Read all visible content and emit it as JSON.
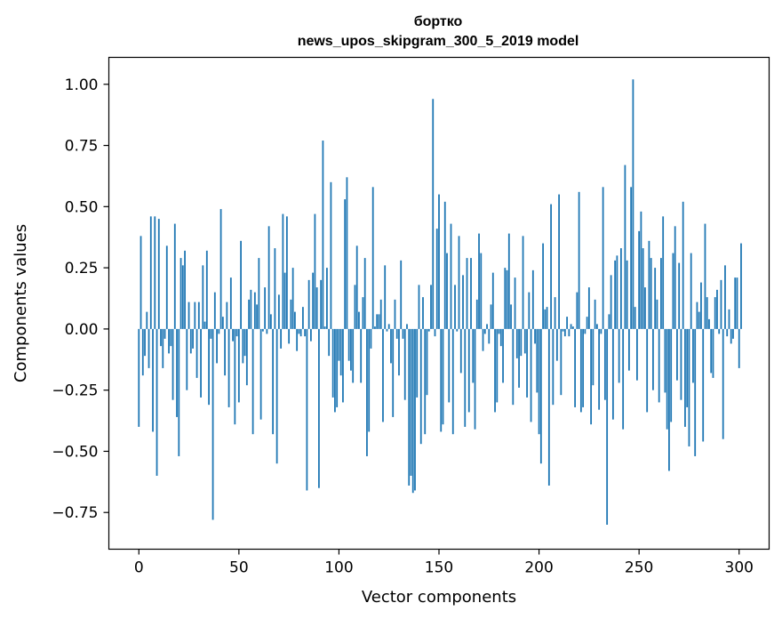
{
  "chart_data": {
    "type": "bar",
    "title": "бортко",
    "subtitle": "news_upos_skipgram_300_5_2019 model",
    "xlabel": "Vector components",
    "ylabel": "Components values",
    "xlim": [
      -15,
      315
    ],
    "ylim": [
      -0.9,
      1.11
    ],
    "xticks": [
      0,
      50,
      100,
      150,
      200,
      250,
      300
    ],
    "xtick_labels": [
      "0",
      "50",
      "100",
      "150",
      "200",
      "250",
      "300"
    ],
    "yticks": [
      -0.75,
      -0.5,
      -0.25,
      0.0,
      0.25,
      0.5,
      0.75,
      1.0
    ],
    "ytick_labels": [
      "−0.75",
      "−0.50",
      "−0.25",
      "0.00",
      "0.25",
      "0.50",
      "0.75",
      "1.00"
    ],
    "bar_color": "#1f77b4",
    "grid": false,
    "values": [
      -0.4,
      0.38,
      -0.19,
      -0.11,
      0.07,
      -0.16,
      0.46,
      -0.42,
      0.46,
      -0.6,
      0.45,
      -0.07,
      -0.16,
      -0.04,
      0.34,
      -0.1,
      -0.07,
      -0.29,
      0.43,
      -0.36,
      -0.52,
      0.29,
      0.26,
      0.32,
      -0.25,
      0.11,
      -0.1,
      -0.08,
      0.11,
      -0.2,
      0.11,
      -0.28,
      0.26,
      0.03,
      0.32,
      -0.31,
      -0.04,
      -0.78,
      0.15,
      -0.14,
      -0.02,
      0.49,
      0.05,
      -0.19,
      0.11,
      -0.32,
      0.21,
      -0.05,
      -0.39,
      -0.03,
      -0.3,
      0.36,
      -0.14,
      -0.11,
      -0.23,
      0.12,
      0.16,
      -0.43,
      0.15,
      0.1,
      0.29,
      -0.37,
      -0.01,
      0.17,
      -0.02,
      0.42,
      0.06,
      -0.43,
      0.33,
      -0.55,
      0.14,
      -0.08,
      0.47,
      0.23,
      0.46,
      -0.06,
      0.12,
      0.25,
      0.07,
      -0.09,
      -0.02,
      -0.03,
      0.09,
      -0.03,
      -0.66,
      0.2,
      -0.05,
      0.23,
      0.47,
      0.17,
      -0.65,
      0.2,
      0.77,
      0.01,
      0.25,
      -0.11,
      0.6,
      -0.28,
      -0.34,
      -0.32,
      -0.13,
      -0.19,
      -0.3,
      0.53,
      0.62,
      -0.13,
      -0.17,
      -0.22,
      0.18,
      0.34,
      0.07,
      -0.22,
      0.13,
      0.29,
      -0.52,
      -0.42,
      -0.08,
      0.58,
      0.01,
      0.06,
      0.06,
      0.12,
      -0.38,
      0.26,
      -0.01,
      0.02,
      -0.14,
      -0.36,
      0.12,
      -0.04,
      -0.19,
      0.28,
      -0.04,
      -0.29,
      0.02,
      -0.64,
      -0.6,
      -0.67,
      -0.66,
      -0.28,
      0.18,
      -0.47,
      0.13,
      -0.43,
      -0.27,
      -0.01,
      0.18,
      0.94,
      -0.03,
      0.41,
      0.55,
      -0.42,
      -0.39,
      0.52,
      0.31,
      -0.3,
      0.43,
      -0.43,
      0.18,
      -0.01,
      0.38,
      -0.18,
      0.22,
      -0.4,
      0.29,
      -0.34,
      0.29,
      -0.22,
      -0.41,
      0.12,
      0.39,
      0.31,
      -0.09,
      -0.02,
      0.02,
      -0.06,
      0.1,
      0.23,
      -0.34,
      -0.3,
      -0.02,
      -0.07,
      -0.22,
      0.25,
      0.24,
      0.39,
      0.1,
      -0.31,
      0.21,
      -0.12,
      -0.24,
      -0.11,
      0.38,
      -0.1,
      -0.28,
      0.15,
      -0.38,
      0.24,
      -0.06,
      -0.26,
      -0.43,
      -0.55,
      0.35,
      0.08,
      0.09,
      -0.64,
      0.51,
      -0.31,
      0.13,
      -0.13,
      0.55,
      -0.27,
      -0.01,
      -0.03,
      0.05,
      -0.03,
      0.02,
      0.01,
      -0.32,
      0.15,
      0.56,
      -0.34,
      -0.32,
      -0.02,
      0.05,
      0.17,
      -0.39,
      -0.23,
      0.12,
      0.02,
      -0.33,
      -0.02,
      0.58,
      -0.29,
      -0.8,
      0.06,
      0.22,
      -0.37,
      0.28,
      0.3,
      -0.22,
      0.33,
      -0.41,
      0.67,
      0.28,
      -0.17,
      0.58,
      1.02,
      0.09,
      -0.21,
      0.4,
      0.48,
      0.33,
      0.17,
      -0.34,
      0.36,
      0.29,
      -0.25,
      0.25,
      0.12,
      -0.3,
      0.29,
      0.46,
      -0.26,
      -0.41,
      -0.58,
      -0.38,
      0.31,
      0.42,
      -0.21,
      0.27,
      -0.29,
      0.52,
      -0.4,
      -0.32,
      -0.48,
      0.31,
      -0.22,
      -0.52,
      0.11,
      0.07,
      0.19,
      -0.46,
      0.43,
      0.13,
      0.04,
      -0.18,
      -0.2,
      0.13,
      0.16,
      -0.02,
      0.2,
      -0.45,
      0.26,
      -0.03,
      0.08,
      -0.06,
      -0.04,
      0.21,
      0.21,
      -0.16,
      0.35
    ]
  }
}
